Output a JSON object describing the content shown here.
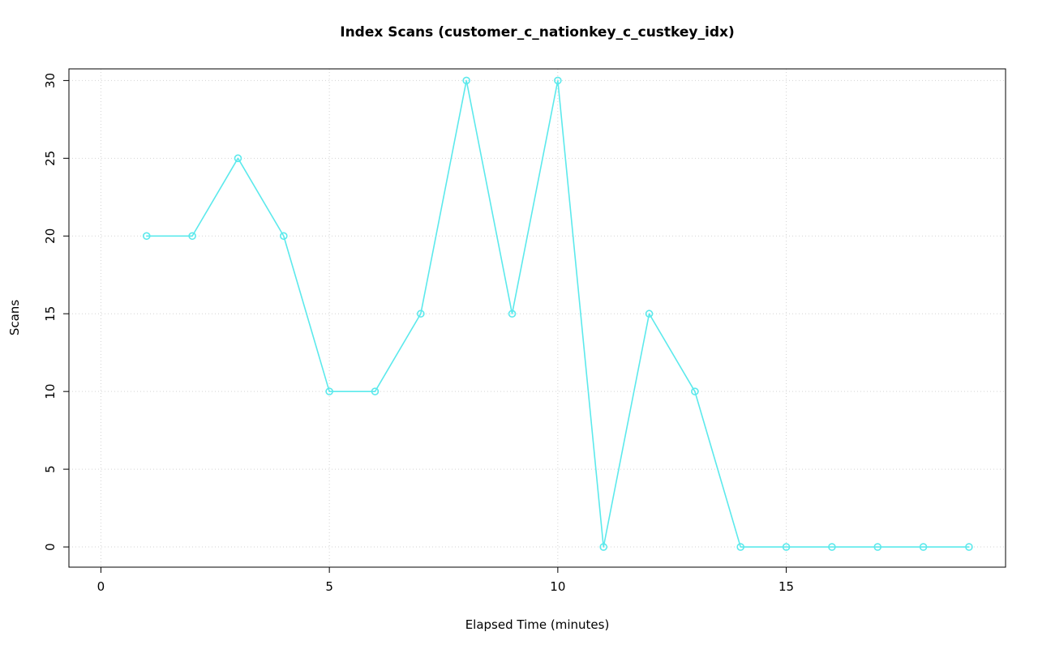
{
  "page": {
    "background": "#ffffff"
  },
  "chart_data": {
    "type": "line",
    "title": "Index Scans (customer_c_nationkey_c_custkey_idx)",
    "xlabel": "Elapsed Time (minutes)",
    "ylabel": "Scans",
    "x": [
      1,
      2,
      3,
      4,
      5,
      6,
      7,
      8,
      9,
      10,
      11,
      12,
      13,
      14,
      15,
      16,
      17,
      18,
      19
    ],
    "y": [
      20,
      20,
      25,
      20,
      10,
      10,
      15,
      30,
      15,
      30,
      0,
      15,
      10,
      0,
      0,
      0,
      0,
      0,
      0
    ],
    "xticks": [
      0,
      5,
      10,
      15
    ],
    "yticks": [
      0,
      5,
      10,
      15,
      20,
      25,
      30
    ],
    "xlim": [
      -0.7,
      19.8
    ],
    "ylim": [
      -1.3,
      30.75
    ],
    "grid": true,
    "legend": "none",
    "line_color": "#5ce9ec",
    "marker": "open-circle",
    "marker_radius": 4,
    "grid_color": "#d3d3d3",
    "axis_color": "#000000",
    "tick_label_color": "#000000"
  }
}
